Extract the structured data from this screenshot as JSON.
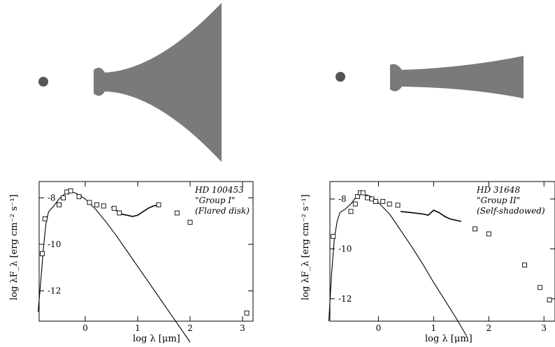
{
  "colors": {
    "disk": "#7a7a7a",
    "star": "#555555",
    "ink": "#000000"
  },
  "chart_data": [
    {
      "type": "scatter",
      "panel": "left",
      "xlabel": "log λ [μm]",
      "ylabel": "log λF_λ [erg cm⁻² s⁻¹]",
      "xlim": [
        -0.88,
        3.2
      ],
      "ylim": [
        -13.3,
        -7.3
      ],
      "xticks": [
        0,
        1,
        2,
        3
      ],
      "yticks": [
        -8,
        -10,
        -12
      ],
      "annotations": [
        "HD 100453",
        "\"Group I\"",
        "(Flared disk)"
      ],
      "photometry": {
        "x": [
          -0.82,
          -0.77,
          -0.5,
          -0.42,
          -0.35,
          -0.28,
          -0.12,
          0.08,
          0.22,
          0.35,
          0.55,
          0.65,
          1.4,
          1.75,
          2.0,
          3.08
        ],
        "y": [
          -10.4,
          -8.9,
          -8.3,
          -8.0,
          -7.75,
          -7.7,
          -7.95,
          -8.2,
          -8.3,
          -8.35,
          -8.45,
          -8.65,
          -8.3,
          -8.65,
          -9.05,
          -12.95
        ]
      },
      "stellar_model": {
        "x": [
          -0.9,
          -0.85,
          -0.8,
          -0.75,
          -0.7,
          -0.6,
          -0.5,
          -0.4,
          -0.3,
          -0.2,
          -0.1,
          0.0,
          0.2,
          0.4,
          0.6,
          0.8,
          1.0,
          1.2,
          1.4,
          1.6,
          1.8,
          2.0
        ],
        "y": [
          -12.9,
          -11.6,
          -10.2,
          -9.1,
          -8.6,
          -8.35,
          -8.05,
          -7.85,
          -7.75,
          -7.78,
          -7.9,
          -8.05,
          -8.5,
          -9.05,
          -9.65,
          -10.3,
          -10.95,
          -11.6,
          -12.25,
          -12.9,
          -13.55,
          -14.2
        ]
      },
      "ir_spectrum": {
        "x": [
          0.5,
          0.6,
          0.7,
          0.8,
          0.9,
          1.0,
          1.1,
          1.2,
          1.3,
          1.4
        ],
        "y": [
          -8.4,
          -8.55,
          -8.7,
          -8.75,
          -8.8,
          -8.75,
          -8.6,
          -8.45,
          -8.35,
          -8.3
        ]
      }
    },
    {
      "type": "scatter",
      "panel": "right",
      "xlabel": "log λ [μm]",
      "ylabel": "log λF_λ [erg cm⁻² s⁻¹]",
      "xlim": [
        -0.88,
        3.2
      ],
      "ylim": [
        -12.9,
        -7.3
      ],
      "xticks": [
        0,
        1,
        2,
        3
      ],
      "yticks": [
        -8,
        -10,
        -12
      ],
      "annotations": [
        "HD 31648",
        "\"Group II\"",
        "(Self-shadowed)"
      ],
      "photometry": {
        "x": [
          -0.82,
          -0.5,
          -0.42,
          -0.38,
          -0.33,
          -0.28,
          -0.2,
          -0.12,
          -0.05,
          0.08,
          0.2,
          0.35,
          1.75,
          2.0,
          2.65,
          2.93,
          3.1
        ],
        "y": [
          -9.5,
          -8.5,
          -8.2,
          -7.9,
          -7.75,
          -7.75,
          -7.95,
          -8.0,
          -8.1,
          -8.1,
          -8.2,
          -8.25,
          -9.2,
          -9.4,
          -10.65,
          -11.55,
          -12.05
        ]
      },
      "stellar_model": {
        "x": [
          -0.9,
          -0.85,
          -0.8,
          -0.75,
          -0.7,
          -0.6,
          -0.5,
          -0.4,
          -0.3,
          -0.2,
          -0.1,
          0.0,
          0.2,
          0.4,
          0.6,
          0.8,
          1.0,
          1.2,
          1.4,
          1.6
        ],
        "y": [
          -12.9,
          -11.0,
          -9.6,
          -8.9,
          -8.55,
          -8.4,
          -8.2,
          -7.9,
          -7.8,
          -7.85,
          -7.95,
          -8.15,
          -8.6,
          -9.25,
          -9.9,
          -10.6,
          -11.35,
          -12.05,
          -12.75,
          -13.5
        ]
      },
      "ir_spectrum": {
        "x": [
          0.4,
          0.6,
          0.8,
          0.9,
          1.0,
          1.1,
          1.2,
          1.3,
          1.4,
          1.5
        ],
        "y": [
          -8.5,
          -8.55,
          -8.6,
          -8.65,
          -8.45,
          -8.55,
          -8.7,
          -8.8,
          -8.85,
          -8.9
        ]
      }
    }
  ]
}
